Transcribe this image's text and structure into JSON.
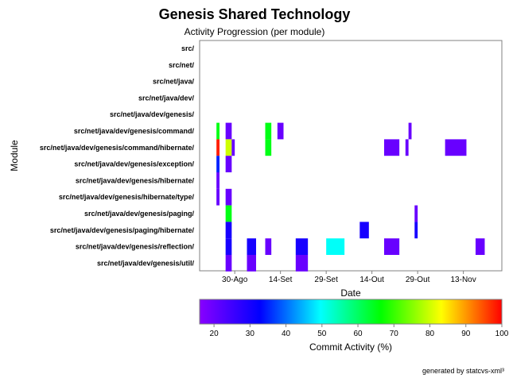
{
  "chart_data": {
    "type": "heatmap",
    "title": "Genesis Shared Technology",
    "subtitle": "Activity Progression (per module)",
    "xlabel": "Date",
    "ylabel": "Module",
    "x_ticks": [
      "30-Ago",
      "14-Set",
      "29-Set",
      "14-Out",
      "29-Out",
      "13-Nov"
    ],
    "modules": [
      "src/",
      "src/net/",
      "src/net/java/",
      "src/net/java/dev/",
      "src/net/java/dev/genesis/",
      "src/net/java/dev/genesis/command/",
      "src/net/java/dev/genesis/command/hibernate/",
      "src/net/java/dev/genesis/exception/",
      "src/net/java/dev/genesis/hibernate/",
      "src/net/java/dev/genesis/hibernate/type/",
      "src/net/java/dev/genesis/paging/",
      "src/net/java/dev/genesis/paging/hibernate/",
      "src/net/java/dev/genesis/reflection/",
      "src/net/java/dev/genesis/util/"
    ],
    "activity": [
      {
        "module": 5,
        "start": "2004-08-24",
        "days": 1,
        "value": 65
      },
      {
        "module": 5,
        "start": "2004-08-27",
        "days": 2,
        "value": 20
      },
      {
        "module": 5,
        "start": "2004-09-09",
        "days": 2,
        "value": 65
      },
      {
        "module": 5,
        "start": "2004-09-13",
        "days": 2,
        "value": 20
      },
      {
        "module": 5,
        "start": "2004-10-26",
        "days": 1,
        "value": 20
      },
      {
        "module": 6,
        "start": "2004-08-24",
        "days": 1,
        "value": 98
      },
      {
        "module": 6,
        "start": "2004-08-27",
        "days": 2,
        "value": 80
      },
      {
        "module": 6,
        "start": "2004-08-29",
        "days": 1,
        "value": 20
      },
      {
        "module": 6,
        "start": "2004-09-09",
        "days": 2,
        "value": 65
      },
      {
        "module": 6,
        "start": "2004-10-18",
        "days": 5,
        "value": 20
      },
      {
        "module": 6,
        "start": "2004-10-25",
        "days": 1,
        "value": 20
      },
      {
        "module": 6,
        "start": "2004-11-07",
        "days": 7,
        "value": 20
      },
      {
        "module": 7,
        "start": "2004-08-24",
        "days": 1,
        "value": 35
      },
      {
        "module": 7,
        "start": "2004-08-27",
        "days": 2,
        "value": 20
      },
      {
        "module": 8,
        "start": "2004-08-24",
        "days": 1,
        "value": 20
      },
      {
        "module": 9,
        "start": "2004-08-24",
        "days": 1,
        "value": 20
      },
      {
        "module": 9,
        "start": "2004-08-27",
        "days": 2,
        "value": 20
      },
      {
        "module": 10,
        "start": "2004-08-27",
        "days": 2,
        "value": 65
      },
      {
        "module": 10,
        "start": "2004-10-28",
        "days": 1,
        "value": 20
      },
      {
        "module": 11,
        "start": "2004-08-27",
        "days": 2,
        "value": 30
      },
      {
        "module": 11,
        "start": "2004-10-10",
        "days": 3,
        "value": 30
      },
      {
        "module": 11,
        "start": "2004-10-28",
        "days": 1,
        "value": 30
      },
      {
        "module": 12,
        "start": "2004-08-27",
        "days": 2,
        "value": 30
      },
      {
        "module": 12,
        "start": "2004-09-03",
        "days": 3,
        "value": 30
      },
      {
        "module": 12,
        "start": "2004-09-09",
        "days": 2,
        "value": 20
      },
      {
        "module": 12,
        "start": "2004-09-19",
        "days": 4,
        "value": 30
      },
      {
        "module": 12,
        "start": "2004-09-29",
        "days": 6,
        "value": 50
      },
      {
        "module": 12,
        "start": "2004-10-18",
        "days": 5,
        "value": 20
      },
      {
        "module": 12,
        "start": "2004-11-17",
        "days": 3,
        "value": 20
      },
      {
        "module": 13,
        "start": "2004-08-27",
        "days": 2,
        "value": 20
      },
      {
        "module": 13,
        "start": "2004-09-03",
        "days": 3,
        "value": 20
      },
      {
        "module": 13,
        "start": "2004-09-19",
        "days": 4,
        "value": 20
      }
    ],
    "colorbar": {
      "label": "Commit Activity (%)",
      "min": 16,
      "max": 100,
      "ticks": [
        "20",
        "30",
        "40",
        "50",
        "60",
        "70",
        "80",
        "90",
        "100"
      ],
      "colors": [
        "#8800ff",
        "#0000ff",
        "#00ffff",
        "#00ff00",
        "#ffff00",
        "#ff0000"
      ]
    }
  },
  "footer": "generated by statcvs-xml³"
}
